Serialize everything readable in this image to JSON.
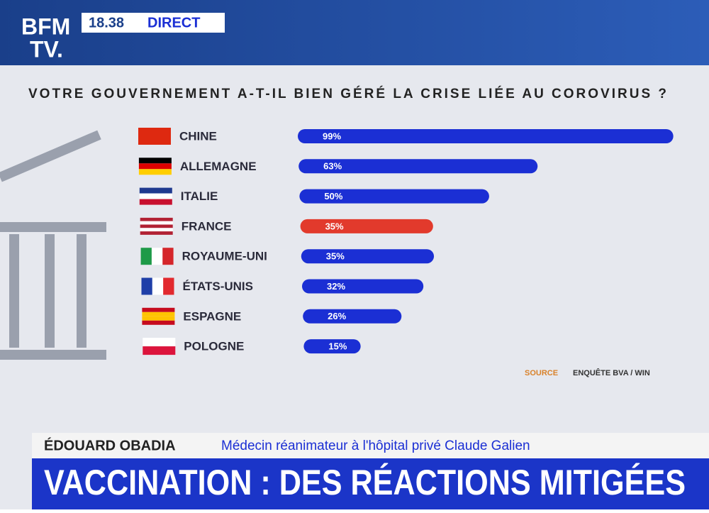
{
  "header": {
    "logo_top": "BFM",
    "logo_bottom": "TV.",
    "time": "18.38",
    "live": "DIRECT"
  },
  "chart_data": {
    "type": "bar",
    "orientation": "horizontal",
    "title": "VOTRE GOUVERNEMENT A-T-IL BIEN GÉRÉ LA CRISE LIÉE AU COROVIRUS ?",
    "categories": [
      "CHINE",
      "ALLEMAGNE",
      "ITALIE",
      "FRANCE",
      "ROYAUME-UNI",
      "ÉTATS-UNIS",
      "ESPAGNE",
      "POLOGNE"
    ],
    "values": [
      99,
      63,
      50,
      35,
      35,
      32,
      26,
      15
    ],
    "value_labels": [
      "99%",
      "63%",
      "50%",
      "35%",
      "35%",
      "32%",
      "26%",
      "15%"
    ],
    "colors": [
      "#1b2fd4",
      "#1b2fd4",
      "#1b2fd4",
      "#e23a2c",
      "#1b2fd4",
      "#1b2fd4",
      "#1b2fd4",
      "#1b2fd4"
    ],
    "source_label": "SOURCE",
    "source": "ENQUÊTE BVA / WIN"
  },
  "lower_third": {
    "name": "ÉDOUARD OBADIA",
    "role": "Médecin réanimateur à l'hôpital privé Claude Galien",
    "headline": "VACCINATION : DES RÉACTIONS MITIGÉES"
  }
}
